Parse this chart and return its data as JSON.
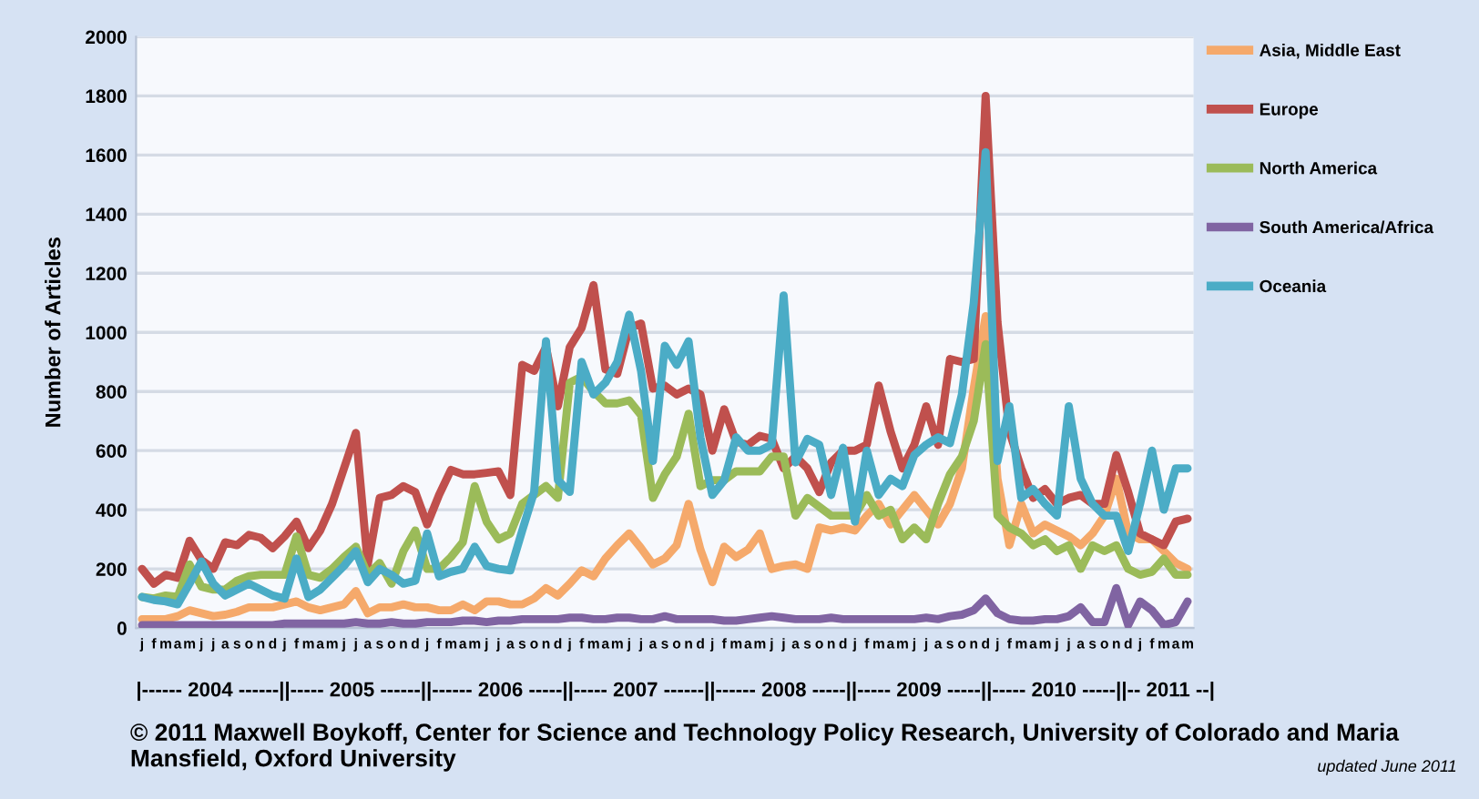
{
  "chart_data": {
    "type": "line",
    "ylabel": "Number of Articles",
    "xlabel": "|------ 2004 ------||----- 2005 ------||------ 2006 -----||----- 2007 ------||------ 2008 -----||----- 2009 -----||----- 2010 -----||-- 2011 --|",
    "categories": [
      "j",
      "f",
      "m",
      "a",
      "m",
      "j",
      "j",
      "a",
      "s",
      "o",
      "n",
      "d",
      "j",
      "f",
      "m",
      "a",
      "m",
      "j",
      "j",
      "a",
      "s",
      "o",
      "n",
      "d",
      "j",
      "f",
      "m",
      "a",
      "m",
      "j",
      "j",
      "a",
      "s",
      "o",
      "n",
      "d",
      "j",
      "f",
      "m",
      "a",
      "m",
      "j",
      "j",
      "a",
      "s",
      "o",
      "n",
      "d",
      "j",
      "f",
      "m",
      "a",
      "m",
      "j",
      "j",
      "a",
      "s",
      "o",
      "n",
      "d",
      "j",
      "f",
      "m",
      "a",
      "m",
      "j",
      "j",
      "a",
      "s",
      "o",
      "n",
      "d",
      "j",
      "f",
      "m",
      "a",
      "m",
      "j",
      "j",
      "a",
      "s",
      "o",
      "n",
      "d",
      "j",
      "f",
      "m",
      "a",
      "m"
    ],
    "series": [
      {
        "name": "Asia, Middle East",
        "color": "#f5a96b",
        "values": [
          30,
          30,
          30,
          40,
          60,
          50,
          40,
          45,
          55,
          70,
          70,
          70,
          80,
          90,
          70,
          60,
          70,
          80,
          125,
          50,
          70,
          70,
          80,
          70,
          70,
          60,
          60,
          80,
          60,
          90,
          90,
          80,
          80,
          100,
          135,
          110,
          150,
          195,
          175,
          235,
          280,
          320,
          270,
          215,
          235,
          280,
          420,
          265,
          155,
          275,
          240,
          265,
          320,
          200,
          210,
          215,
          200,
          340,
          330,
          340,
          330,
          380,
          420,
          350,
          400,
          450,
          400,
          350,
          420,
          540,
          810,
          1055,
          505,
          280,
          420,
          320,
          350,
          330,
          310,
          280,
          320,
          380,
          505,
          320,
          300,
          300,
          260,
          220,
          200
        ]
      },
      {
        "name": "Europe",
        "color": "#c0504d",
        "values": [
          200,
          150,
          180,
          170,
          295,
          230,
          200,
          290,
          280,
          315,
          305,
          270,
          310,
          360,
          270,
          330,
          420,
          540,
          660,
          215,
          440,
          450,
          480,
          460,
          350,
          450,
          535,
          520,
          520,
          525,
          530,
          450,
          890,
          870,
          950,
          750,
          950,
          1015,
          1160,
          875,
          860,
          1015,
          1030,
          810,
          820,
          790,
          810,
          790,
          600,
          740,
          630,
          620,
          650,
          640,
          540,
          580,
          540,
          460,
          560,
          600,
          600,
          620,
          820,
          665,
          540,
          620,
          750,
          620,
          910,
          900,
          910,
          1800,
          1035,
          665,
          540,
          440,
          470,
          420,
          440,
          450,
          420,
          420,
          585,
          460,
          320,
          300,
          280,
          360,
          370
        ]
      },
      {
        "name": "North America",
        "color": "#9bbb59",
        "values": [
          105,
          100,
          110,
          105,
          215,
          140,
          130,
          130,
          160,
          175,
          180,
          180,
          180,
          310,
          180,
          170,
          200,
          240,
          275,
          180,
          220,
          150,
          260,
          330,
          200,
          200,
          240,
          290,
          480,
          360,
          300,
          320,
          420,
          450,
          480,
          440,
          830,
          850,
          800,
          760,
          760,
          770,
          720,
          440,
          520,
          580,
          725,
          480,
          500,
          500,
          530,
          530,
          530,
          580,
          580,
          380,
          440,
          410,
          380,
          380,
          380,
          450,
          380,
          400,
          300,
          340,
          300,
          420,
          520,
          580,
          700,
          960,
          380,
          340,
          320,
          280,
          300,
          260,
          280,
          200,
          280,
          260,
          280,
          200,
          180,
          190,
          235,
          180,
          180
        ]
      },
      {
        "name": "South America/Africa",
        "color": "#8064a2",
        "values": [
          10,
          10,
          10,
          10,
          10,
          10,
          10,
          10,
          10,
          10,
          10,
          10,
          15,
          15,
          15,
          15,
          15,
          15,
          20,
          15,
          15,
          20,
          15,
          15,
          20,
          20,
          20,
          25,
          25,
          20,
          25,
          25,
          30,
          30,
          30,
          30,
          35,
          35,
          30,
          30,
          35,
          35,
          30,
          30,
          40,
          30,
          30,
          30,
          30,
          25,
          25,
          30,
          35,
          40,
          35,
          30,
          30,
          30,
          35,
          30,
          30,
          30,
          30,
          30,
          30,
          30,
          35,
          30,
          40,
          45,
          60,
          100,
          50,
          30,
          25,
          25,
          30,
          30,
          40,
          70,
          20,
          20,
          135,
          10,
          90,
          60,
          10,
          20,
          90
        ]
      },
      {
        "name": "Oceania",
        "color": "#4bacc6",
        "values": [
          105,
          95,
          90,
          80,
          150,
          225,
          150,
          110,
          130,
          150,
          130,
          110,
          100,
          235,
          105,
          130,
          170,
          210,
          260,
          155,
          200,
          180,
          150,
          160,
          320,
          175,
          190,
          200,
          275,
          210,
          200,
          195,
          330,
          460,
          970,
          500,
          460,
          900,
          790,
          830,
          900,
          1060,
          870,
          565,
          955,
          890,
          970,
          645,
          450,
          500,
          645,
          600,
          600,
          620,
          1125,
          560,
          640,
          620,
          450,
          610,
          360,
          600,
          450,
          505,
          480,
          585,
          620,
          645,
          625,
          790,
          1100,
          1610,
          565,
          750,
          440,
          470,
          420,
          380,
          750,
          505,
          420,
          380,
          380,
          260,
          420,
          600,
          400,
          540,
          540
        ]
      }
    ],
    "ylim": [
      0,
      2000
    ],
    "yticks": [
      0,
      200,
      400,
      600,
      800,
      1000,
      1200,
      1400,
      1600,
      1800,
      2000
    ],
    "grid": "y",
    "legend": "right",
    "marker": "none",
    "line_style": "solid",
    "annotations": [
      "© 2011 Maxwell Boykoff, Center for Science and Technology Policy Research, University of Colorado and Maria Mansfield, Oxford University",
      "updated June 2011"
    ]
  }
}
